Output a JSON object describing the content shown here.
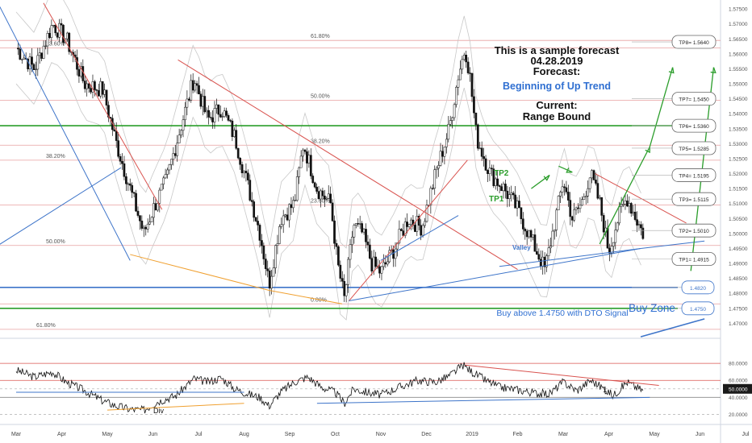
{
  "forecast": {
    "title_lines": [
      "This is a sample forecast",
      "04.28.2019",
      "Forecast:"
    ],
    "subtitle": "Beginning of Up Trend",
    "current_lines": [
      "Current:",
      "Range Bound"
    ]
  },
  "annotations": {
    "buy_label": "Buy above 1.4750 with DTO Signal",
    "buy_zone": "Buy Zone",
    "valley": "Valley",
    "tp1_marker": "TP1",
    "tp2_marker": "TP2",
    "div": "Div",
    "count_1": "1"
  },
  "colors": {
    "up_candle": "#ffffff",
    "down_candle": "#111111",
    "green": "#2a9d2a",
    "red": "#d9534f",
    "blue": "#3d74c9",
    "orange": "#f0a030",
    "fib": "#e8a0a0"
  },
  "chart_data": [
    {
      "type": "candlestick",
      "symbol_timeframe": "daily",
      "x_tick_labels": [
        "Mar",
        "Apr",
        "May",
        "Jun",
        "Jul",
        "Aug",
        "Sep",
        "Oct",
        "Nov",
        "Dec",
        "2019",
        "Feb",
        "Mar",
        "Apr",
        "May",
        "Jun",
        "Jul",
        "Aug"
      ],
      "ylim": [
        1.465,
        1.578
      ],
      "y_ticks": [
        1.575,
        1.57,
        1.565,
        1.56,
        1.555,
        1.55,
        1.545,
        1.54,
        1.535,
        1.53,
        1.525,
        1.52,
        1.515,
        1.51,
        1.505,
        1.5,
        1.495,
        1.49,
        1.485,
        1.48,
        1.475,
        1.47
      ],
      "y_tick_labels": [
        "1.57500",
        "1.57000",
        "1.56500",
        "1.56000",
        "1.55500",
        "1.55000",
        "1.54500",
        "1.54000",
        "1.53500",
        "1.53000",
        "1.52500",
        "1.52000",
        "1.51500",
        "1.51000",
        "1.50500",
        "1.50000",
        "1.49500",
        "1.49000",
        "1.48500",
        "1.48000",
        "1.47500",
        "1.47000"
      ],
      "close_path": [
        {
          "month": 0.0,
          "price": 1.562
        },
        {
          "month": 0.4,
          "price": 1.555
        },
        {
          "month": 0.8,
          "price": 1.57
        },
        {
          "month": 1.1,
          "price": 1.565
        },
        {
          "month": 1.5,
          "price": 1.55
        },
        {
          "month": 1.9,
          "price": 1.548
        },
        {
          "month": 2.2,
          "price": 1.53
        },
        {
          "month": 2.5,
          "price": 1.515
        },
        {
          "month": 2.8,
          "price": 1.5
        },
        {
          "month": 3.0,
          "price": 1.508
        },
        {
          "month": 3.3,
          "price": 1.518
        },
        {
          "month": 3.6,
          "price": 1.535
        },
        {
          "month": 3.9,
          "price": 1.552
        },
        {
          "month": 4.2,
          "price": 1.538
        },
        {
          "month": 4.5,
          "price": 1.542
        },
        {
          "month": 4.8,
          "price": 1.532
        },
        {
          "month": 5.1,
          "price": 1.515
        },
        {
          "month": 5.35,
          "price": 1.5
        },
        {
          "month": 5.55,
          "price": 1.483
        },
        {
          "month": 5.8,
          "price": 1.505
        },
        {
          "month": 6.1,
          "price": 1.51
        },
        {
          "month": 6.3,
          "price": 1.53
        },
        {
          "month": 6.6,
          "price": 1.515
        },
        {
          "month": 6.9,
          "price": 1.51
        },
        {
          "month": 7.05,
          "price": 1.49
        },
        {
          "month": 7.2,
          "price": 1.478
        },
        {
          "month": 7.4,
          "price": 1.503
        },
        {
          "month": 7.6,
          "price": 1.5
        },
        {
          "month": 7.8,
          "price": 1.49
        },
        {
          "month": 8.0,
          "price": 1.487
        },
        {
          "month": 8.3,
          "price": 1.495
        },
        {
          "month": 8.6,
          "price": 1.505
        },
        {
          "month": 8.9,
          "price": 1.502
        },
        {
          "month": 9.2,
          "price": 1.52
        },
        {
          "month": 9.5,
          "price": 1.535
        },
        {
          "month": 9.7,
          "price": 1.553
        },
        {
          "month": 9.85,
          "price": 1.562
        },
        {
          "month": 9.95,
          "price": 1.553
        },
        {
          "month": 10.1,
          "price": 1.532
        },
        {
          "month": 10.4,
          "price": 1.52
        },
        {
          "month": 10.7,
          "price": 1.515
        },
        {
          "month": 11.0,
          "price": 1.508
        },
        {
          "month": 11.3,
          "price": 1.498
        },
        {
          "month": 11.6,
          "price": 1.488
        },
        {
          "month": 11.9,
          "price": 1.51
        },
        {
          "month": 12.0,
          "price": 1.518
        },
        {
          "month": 12.2,
          "price": 1.505
        },
        {
          "month": 12.4,
          "price": 1.51
        },
        {
          "month": 12.6,
          "price": 1.52
        },
        {
          "month": 12.8,
          "price": 1.51
        },
        {
          "month": 13.0,
          "price": 1.494
        },
        {
          "month": 13.2,
          "price": 1.505
        },
        {
          "month": 13.4,
          "price": 1.512
        },
        {
          "month": 13.6,
          "price": 1.505
        },
        {
          "month": 13.75,
          "price": 1.5
        }
      ],
      "fib_levels": [
        {
          "label": "61.80%",
          "price": 1.5645
        },
        {
          "label": "23.60%",
          "price": 1.562
        },
        {
          "label": "50.00%",
          "price": 1.5445
        },
        {
          "label": "38.20%",
          "price": 1.5295
        },
        {
          "label": "38.20%",
          "price": 1.5245
        },
        {
          "label": "23.60%",
          "price": 1.5095
        },
        {
          "label": "50.00%",
          "price": 1.496
        },
        {
          "label": "0.00%",
          "price": 1.4765
        },
        {
          "label": "61.80%",
          "price": 1.468
        }
      ],
      "horizontal_levels": [
        {
          "price": 1.536,
          "color": "green"
        },
        {
          "price": 1.482,
          "color": "blue"
        },
        {
          "price": 1.475,
          "color": "green"
        }
      ],
      "target_labels": [
        {
          "label": "TP8= 1.5640",
          "price": 1.564
        },
        {
          "label": "TP7= 1.5450",
          "price": 1.545
        },
        {
          "label": "TP6= 1.5360",
          "price": 1.536
        },
        {
          "label": "TP5= 1.5285",
          "price": 1.5285
        },
        {
          "label": "TP4= 1.5195",
          "price": 1.5195
        },
        {
          "label": "TP3= 1.5115",
          "price": 1.5115
        },
        {
          "label": "TP2= 1.5010",
          "price": 1.501
        },
        {
          "label": "TP1= 1.4915",
          "price": 1.4915
        },
        {
          "label": "1.4820",
          "price": 1.482
        },
        {
          "label": "1.4750",
          "price": 1.475
        }
      ]
    },
    {
      "type": "line",
      "indicator": "oscillator",
      "ylim": [
        10,
        100
      ],
      "y_tick_labels": [
        "80.0000",
        "60.0000",
        "50.0000",
        "40.0000",
        "20.0000"
      ],
      "y_ticks": [
        80,
        60,
        50,
        40,
        20
      ],
      "current_value_label": "50.0000",
      "path": [
        {
          "month": 0.0,
          "value": 72
        },
        {
          "month": 0.4,
          "value": 64
        },
        {
          "month": 0.8,
          "value": 70
        },
        {
          "month": 1.1,
          "value": 58
        },
        {
          "month": 1.5,
          "value": 48
        },
        {
          "month": 1.9,
          "value": 36
        },
        {
          "month": 2.2,
          "value": 30
        },
        {
          "month": 2.5,
          "value": 26
        },
        {
          "month": 2.8,
          "value": 25
        },
        {
          "month": 3.1,
          "value": 35
        },
        {
          "month": 3.5,
          "value": 42
        },
        {
          "month": 3.9,
          "value": 62
        },
        {
          "month": 4.2,
          "value": 58
        },
        {
          "month": 4.5,
          "value": 63
        },
        {
          "month": 4.8,
          "value": 50
        },
        {
          "month": 5.1,
          "value": 44
        },
        {
          "month": 5.35,
          "value": 40
        },
        {
          "month": 5.55,
          "value": 30
        },
        {
          "month": 5.8,
          "value": 46
        },
        {
          "month": 6.1,
          "value": 58
        },
        {
          "month": 6.4,
          "value": 64
        },
        {
          "month": 6.7,
          "value": 52
        },
        {
          "month": 7.0,
          "value": 46
        },
        {
          "month": 7.2,
          "value": 33
        },
        {
          "month": 7.4,
          "value": 50
        },
        {
          "month": 7.7,
          "value": 46
        },
        {
          "month": 8.0,
          "value": 43
        },
        {
          "month": 8.4,
          "value": 52
        },
        {
          "month": 8.8,
          "value": 60
        },
        {
          "month": 9.2,
          "value": 58
        },
        {
          "month": 9.5,
          "value": 65
        },
        {
          "month": 9.8,
          "value": 78
        },
        {
          "month": 10.0,
          "value": 70
        },
        {
          "month": 10.3,
          "value": 60
        },
        {
          "month": 10.6,
          "value": 52
        },
        {
          "month": 11.0,
          "value": 49
        },
        {
          "month": 11.4,
          "value": 45
        },
        {
          "month": 11.7,
          "value": 44
        },
        {
          "month": 12.0,
          "value": 58
        },
        {
          "month": 12.3,
          "value": 48
        },
        {
          "month": 12.6,
          "value": 60
        },
        {
          "month": 12.9,
          "value": 50
        },
        {
          "month": 13.1,
          "value": 42
        },
        {
          "month": 13.4,
          "value": 58
        },
        {
          "month": 13.6,
          "value": 52
        },
        {
          "month": 13.75,
          "value": 48
        }
      ]
    }
  ]
}
